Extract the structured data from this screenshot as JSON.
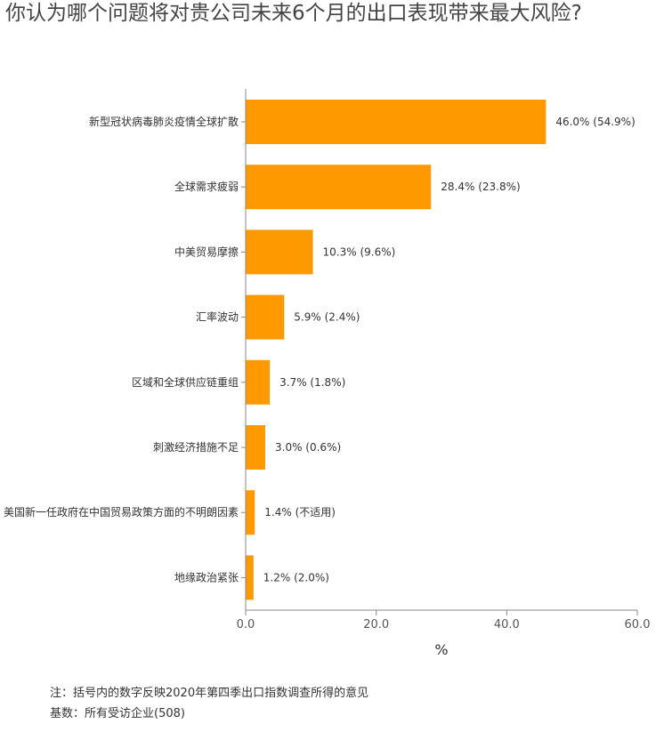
{
  "title": "你认为哪个问题将对贵公司未来6个月的出口表现带来最大风险?",
  "colors": {
    "bar": "#FF9900",
    "axis": "#888888"
  },
  "footnotes": {
    "note": "注：括号内的数字反映2020年第四季出口指数调查所得的意见",
    "base": "基数：所有受访企业(508)"
  },
  "chart_data": {
    "type": "bar",
    "orientation": "horizontal",
    "title": "你认为哪个问题将对贵公司未来6个月的出口表现带来最大风险?",
    "xlabel": "%",
    "ylabel": "",
    "xlim": [
      0,
      60
    ],
    "xticks": [
      "0.0",
      "20.0",
      "40.0",
      "60.0"
    ],
    "categories": [
      "新型冠状病毒肺炎疫情全球扩散",
      "全球需求疲弱",
      "中美贸易摩擦",
      "汇率波动",
      "区域和全球供应链重组",
      "刺激经济措施不足",
      "美国新一任政府在中国贸易政策方面的不明朗因素",
      "地缘政治紧张"
    ],
    "values": [
      46.0,
      28.4,
      10.3,
      5.9,
      3.7,
      3.0,
      1.4,
      1.2
    ],
    "value_labels": [
      "46.0% (54.9%)",
      "28.4% (23.8%)",
      "10.3% (9.6%)",
      "5.9% (2.4%)",
      "3.7% (1.8%)",
      "3.0% (0.6%)",
      "1.4% (不适用)",
      "1.2% (2.0%)"
    ]
  }
}
